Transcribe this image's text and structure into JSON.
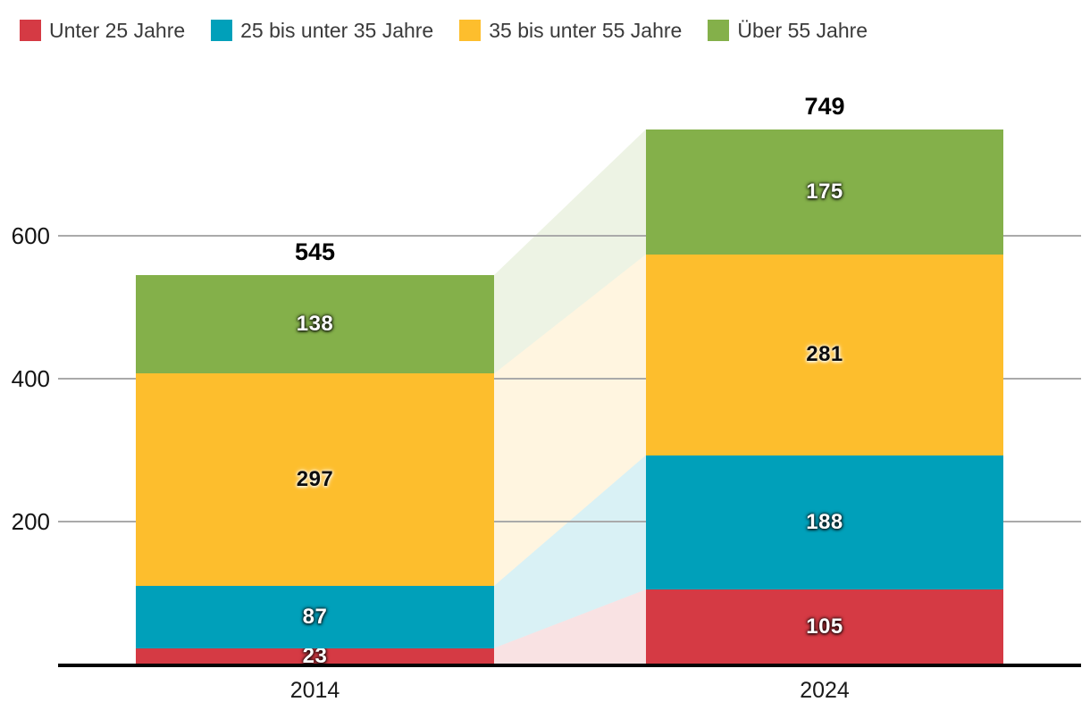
{
  "legend": {
    "items": [
      {
        "label": "Unter 25 Jahre",
        "color": "#d53a44"
      },
      {
        "label": "25 bis unter 35 Jahre",
        "color": "#00a0ba"
      },
      {
        "label": "35 bis unter 55 Jahre",
        "color": "#fdbe2d"
      },
      {
        "label": "Über 55 Jahre",
        "color": "#84b04a"
      }
    ]
  },
  "chart_data": {
    "type": "bar",
    "subtype": "stacked-columns-with-connector-bands",
    "categories": [
      "2014",
      "2024"
    ],
    "series": [
      {
        "name": "Unter 25 Jahre",
        "key": "unter-25-jahre",
        "color": "#d53a44",
        "label_style": "light",
        "values": [
          23,
          105
        ]
      },
      {
        "name": "25 bis unter 35 Jahre",
        "key": "25-bis-unter-35-jahre",
        "color": "#00a0ba",
        "label_style": "light",
        "values": [
          87,
          188
        ]
      },
      {
        "name": "35 bis unter 55 Jahre",
        "key": "35-bis-unter-55-jahre",
        "color": "#fdbe2d",
        "label_style": "dark",
        "values": [
          297,
          281
        ]
      },
      {
        "name": "Über 55 Jahre",
        "key": "ueber-55-jahre",
        "color": "#84b04a",
        "label_style": "light",
        "values": [
          138,
          175
        ]
      }
    ],
    "totals": [
      545,
      749
    ],
    "y_ticks": [
      200,
      400,
      600
    ],
    "ylim": [
      0,
      780
    ],
    "grid": true,
    "legend_position": "top-left",
    "connector_band_opacity": 0.15,
    "gridline_color": "#aaaaaa",
    "axis_color": "#050505"
  }
}
